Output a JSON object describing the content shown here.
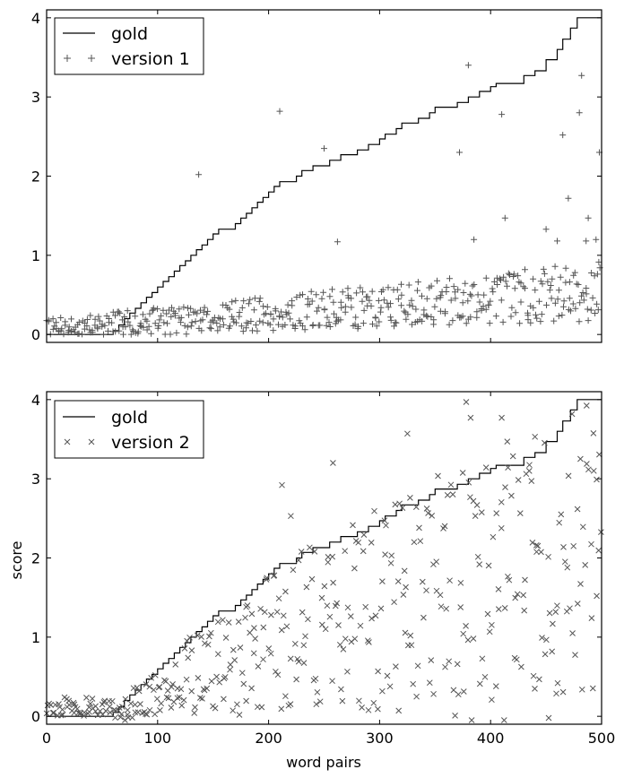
{
  "chart_data": [
    {
      "type": "line+scatter",
      "xlim": [
        0,
        500
      ],
      "ylim": [
        -0.1,
        4.1
      ],
      "yticks": [
        "0",
        "1",
        "2",
        "3",
        "4"
      ],
      "xticks": [],
      "xlabel": "",
      "ylabel": "",
      "legend": {
        "placement": "top-left",
        "entries": [
          "gold",
          "version 1"
        ]
      },
      "gold": {
        "name": "gold",
        "points": [
          [
            0,
            0
          ],
          [
            55,
            0
          ],
          [
            60,
            0.05
          ],
          [
            65,
            0.12
          ],
          [
            70,
            0.2
          ],
          [
            75,
            0.27
          ],
          [
            80,
            0.33
          ],
          [
            85,
            0.4
          ],
          [
            90,
            0.47
          ],
          [
            95,
            0.53
          ],
          [
            100,
            0.6
          ],
          [
            105,
            0.67
          ],
          [
            110,
            0.73
          ],
          [
            115,
            0.8
          ],
          [
            120,
            0.87
          ],
          [
            125,
            0.93
          ],
          [
            130,
            1.0
          ],
          [
            135,
            1.07
          ],
          [
            140,
            1.13
          ],
          [
            145,
            1.2
          ],
          [
            150,
            1.27
          ],
          [
            155,
            1.33
          ],
          [
            170,
            1.4
          ],
          [
            175,
            1.47
          ],
          [
            180,
            1.53
          ],
          [
            185,
            1.6
          ],
          [
            190,
            1.67
          ],
          [
            195,
            1.73
          ],
          [
            200,
            1.8
          ],
          [
            205,
            1.87
          ],
          [
            210,
            1.93
          ],
          [
            225,
            2.0
          ],
          [
            230,
            2.07
          ],
          [
            240,
            2.13
          ],
          [
            255,
            2.2
          ],
          [
            265,
            2.27
          ],
          [
            280,
            2.33
          ],
          [
            290,
            2.4
          ],
          [
            300,
            2.47
          ],
          [
            305,
            2.53
          ],
          [
            315,
            2.6
          ],
          [
            320,
            2.67
          ],
          [
            335,
            2.73
          ],
          [
            345,
            2.8
          ],
          [
            350,
            2.87
          ],
          [
            370,
            2.93
          ],
          [
            380,
            3.0
          ],
          [
            390,
            3.07
          ],
          [
            400,
            3.13
          ],
          [
            405,
            3.17
          ],
          [
            430,
            3.27
          ],
          [
            440,
            3.33
          ],
          [
            450,
            3.47
          ],
          [
            460,
            3.6
          ],
          [
            465,
            3.73
          ],
          [
            472,
            3.87
          ],
          [
            478,
            4.0
          ],
          [
            500,
            4.0
          ]
        ]
      },
      "scatter": {
        "name": "version 1",
        "marker": "plus",
        "seed": 7,
        "count": 470,
        "outliers": [
          [
            137,
            2.02
          ],
          [
            210,
            2.82
          ],
          [
            250,
            2.35
          ],
          [
            262,
            1.17
          ],
          [
            372,
            2.3
          ],
          [
            380,
            3.4
          ],
          [
            385,
            1.2
          ],
          [
            410,
            2.78
          ],
          [
            413,
            1.47
          ],
          [
            450,
            1.33
          ],
          [
            460,
            1.18
          ],
          [
            465,
            2.52
          ],
          [
            470,
            1.72
          ],
          [
            480,
            2.8
          ],
          [
            482,
            3.27
          ],
          [
            486,
            1.18
          ],
          [
            488,
            1.47
          ],
          [
            495,
            1.2
          ],
          [
            498,
            2.3
          ]
        ]
      }
    },
    {
      "type": "line+scatter",
      "xlim": [
        0,
        500
      ],
      "ylim": [
        -0.1,
        4.1
      ],
      "yticks": [
        "0",
        "1",
        "2",
        "3",
        "4"
      ],
      "xticks": [
        "0",
        "100",
        "200",
        "300",
        "400",
        "500"
      ],
      "xlabel": "word pairs",
      "ylabel": "score",
      "legend": {
        "placement": "top-left",
        "entries": [
          "gold",
          "version 2"
        ]
      },
      "gold": {
        "name": "gold",
        "points": [
          [
            0,
            0
          ],
          [
            55,
            0
          ],
          [
            60,
            0.05
          ],
          [
            65,
            0.12
          ],
          [
            70,
            0.2
          ],
          [
            75,
            0.27
          ],
          [
            80,
            0.33
          ],
          [
            85,
            0.4
          ],
          [
            90,
            0.47
          ],
          [
            95,
            0.53
          ],
          [
            100,
            0.6
          ],
          [
            105,
            0.67
          ],
          [
            110,
            0.73
          ],
          [
            115,
            0.8
          ],
          [
            120,
            0.87
          ],
          [
            125,
            0.93
          ],
          [
            130,
            1.0
          ],
          [
            135,
            1.07
          ],
          [
            140,
            1.13
          ],
          [
            145,
            1.2
          ],
          [
            150,
            1.27
          ],
          [
            155,
            1.33
          ],
          [
            170,
            1.4
          ],
          [
            175,
            1.47
          ],
          [
            180,
            1.53
          ],
          [
            185,
            1.6
          ],
          [
            190,
            1.67
          ],
          [
            195,
            1.73
          ],
          [
            200,
            1.8
          ],
          [
            205,
            1.87
          ],
          [
            210,
            1.93
          ],
          [
            225,
            2.0
          ],
          [
            230,
            2.07
          ],
          [
            240,
            2.13
          ],
          [
            255,
            2.2
          ],
          [
            265,
            2.27
          ],
          [
            280,
            2.33
          ],
          [
            290,
            2.4
          ],
          [
            300,
            2.47
          ],
          [
            305,
            2.53
          ],
          [
            315,
            2.6
          ],
          [
            320,
            2.67
          ],
          [
            335,
            2.73
          ],
          [
            345,
            2.8
          ],
          [
            350,
            2.87
          ],
          [
            370,
            2.93
          ],
          [
            380,
            3.0
          ],
          [
            390,
            3.07
          ],
          [
            400,
            3.13
          ],
          [
            405,
            3.17
          ],
          [
            430,
            3.27
          ],
          [
            440,
            3.33
          ],
          [
            450,
            3.47
          ],
          [
            460,
            3.6
          ],
          [
            465,
            3.73
          ],
          [
            472,
            3.87
          ],
          [
            478,
            4.0
          ],
          [
            500,
            4.0
          ]
        ]
      },
      "scatter": {
        "name": "version 2",
        "marker": "x",
        "seed": 13,
        "count": 420,
        "outliers": [
          [
            212,
            2.92
          ],
          [
            220,
            2.53
          ],
          [
            258,
            3.2
          ],
          [
            325,
            3.57
          ],
          [
            378,
            3.97
          ],
          [
            382,
            3.77
          ],
          [
            410,
            3.77
          ],
          [
            415,
            3.47
          ],
          [
            440,
            3.53
          ],
          [
            493,
            3.1
          ]
        ]
      }
    }
  ]
}
